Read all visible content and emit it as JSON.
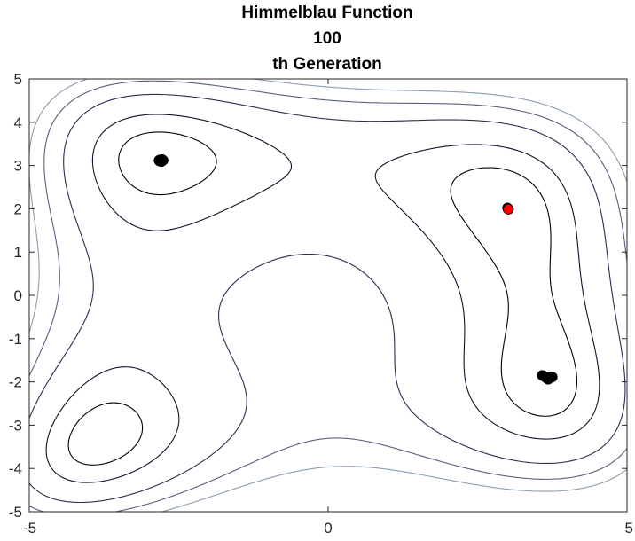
{
  "chart_data": {
    "type": "scatter",
    "title_lines": [
      "Himmelblau Function",
      "100",
      "th Generation"
    ],
    "xlabel": "",
    "ylabel": "",
    "xlim": [
      -5,
      5
    ],
    "ylim": [
      -5,
      5
    ],
    "x_ticks": [
      -5,
      0,
      5
    ],
    "y_ticks": [
      5,
      4,
      3,
      2,
      1,
      0,
      -1,
      -2,
      -3,
      -4,
      -5
    ],
    "grid": false,
    "legend": "none",
    "background": "contour",
    "contour_levels": [
      20,
      60,
      140,
      220,
      300
    ],
    "contour_colors": [
      "#000000",
      "#10102a",
      "#2a2d4e",
      "#55607d",
      "#8c9bad"
    ],
    "colors": {
      "population": "#000000",
      "best": "#ff0000"
    },
    "series": [
      {
        "points": [
          [
            -2.8,
            3.12
          ],
          [
            -2.78,
            3.14
          ],
          [
            -2.82,
            3.1
          ],
          [
            -2.77,
            3.11
          ],
          [
            -2.81,
            3.13
          ],
          [
            -2.79,
            3.09
          ],
          [
            -2.76,
            3.12
          ],
          [
            -2.83,
            3.12
          ],
          [
            3.0,
            2.02
          ],
          [
            3.02,
            1.99
          ],
          [
            3.58,
            -1.85
          ],
          [
            3.62,
            -1.88
          ],
          [
            3.66,
            -1.92
          ],
          [
            3.7,
            -1.9
          ],
          [
            3.75,
            -1.89
          ],
          [
            3.6,
            -1.86
          ],
          [
            3.68,
            -1.94
          ]
        ]
      },
      {
        "points": [
          [
            3.01,
            1.99
          ]
        ]
      }
    ]
  }
}
